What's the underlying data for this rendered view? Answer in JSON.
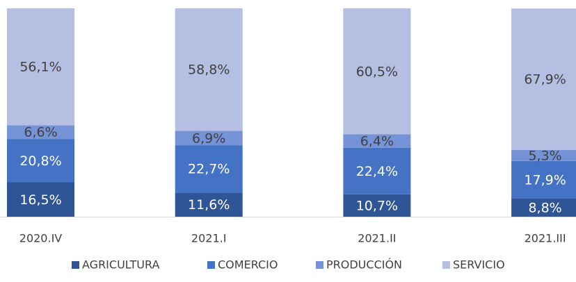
{
  "chart_data": {
    "type": "stacked_bar",
    "categories": [
      "2020.IV",
      "2021.I",
      "2021.II",
      "2021.III"
    ],
    "series": [
      {
        "name": "AGRICULTURA",
        "color": "#2f5597",
        "values": [
          16.5,
          11.6,
          10.7,
          8.8
        ],
        "value_labels": [
          "16,5%",
          "11,6%",
          "10,7%",
          "8,8%"
        ]
      },
      {
        "name": "COMERCIO",
        "color": "#4472c4",
        "values": [
          20.8,
          22.7,
          22.4,
          17.9
        ],
        "value_labels": [
          "20,8%",
          "22,7%",
          "22,4%",
          "17,9%"
        ]
      },
      {
        "name": "PRODUCCIÓN",
        "color": "#7593d6",
        "values": [
          6.6,
          6.9,
          6.4,
          5.3
        ],
        "value_labels": [
          "6,6%",
          "6,9%",
          "6,4%",
          "5,3%"
        ]
      },
      {
        "name": "SERVICIO",
        "color": "#b4bfe2",
        "values": [
          56.1,
          58.8,
          60.5,
          67.9
        ],
        "value_labels": [
          "56,1%",
          "58,8%",
          "60,5%",
          "67,9%"
        ]
      }
    ],
    "ylim": [
      0,
      100
    ],
    "legend": "bottom"
  }
}
